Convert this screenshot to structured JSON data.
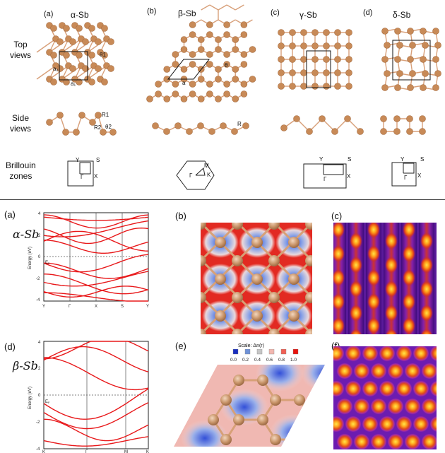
{
  "top": {
    "panels": [
      {
        "tag": "(a)",
        "name": "α-Sb"
      },
      {
        "tag": "(b)",
        "name": "β-Sb"
      },
      {
        "tag": "(c)",
        "name": "γ-Sb"
      },
      {
        "tag": "(d)",
        "name": "δ-Sb"
      }
    ],
    "row_labels": {
      "top_views": [
        "Top",
        "views"
      ],
      "side_views": [
        "Side",
        "views"
      ],
      "brillouin": [
        "Brillouin",
        "zones"
      ]
    },
    "annotations": {
      "theta1": "θ1",
      "a2": "a₂",
      "a1": "a₁",
      "theta": "θ",
      "a": "a",
      "R1": "R1",
      "R2": "R2",
      "theta2": "θ2",
      "R": "R"
    },
    "bz_labels": {
      "Y": "Y",
      "S": "S",
      "X": "X",
      "Gamma": "Γ",
      "M": "M",
      "K": "K"
    }
  },
  "bottom": {
    "left_tags": [
      "(a)",
      "(d)"
    ],
    "mid_tags": [
      "(b)",
      "(e)"
    ],
    "right_tags": [
      "(c)",
      "(f)"
    ],
    "alpha_label": "α-Sb",
    "beta_label": "β-Sb",
    "ylabel": "Energy (eV)",
    "ef": "E",
    "ef_sub": "F",
    "alpha_yticks": [
      "4",
      "2",
      "0",
      "-2",
      "-4"
    ],
    "alpha_xticks": [
      "Y",
      "Γ",
      "X",
      "S",
      "Y"
    ],
    "beta_yticks": [
      "4",
      "2",
      "0",
      "-2",
      "-4"
    ],
    "beta_xticks": [
      "K",
      "Γ",
      "M",
      "K"
    ],
    "scale_title": "Scale: Δn(r)",
    "scale_values": [
      "0.0",
      "0.2",
      "0.4",
      "0.6",
      "0.8",
      "1.0"
    ],
    "scale_colors": [
      "#1a2fbf",
      "#6f93d8",
      "#c6c6c6",
      "#f2b7b0",
      "#f06055",
      "#e8140e"
    ]
  },
  "colors": {
    "atom": "#c88a57",
    "bond": "#d8a07a",
    "band": "#e8181a"
  }
}
